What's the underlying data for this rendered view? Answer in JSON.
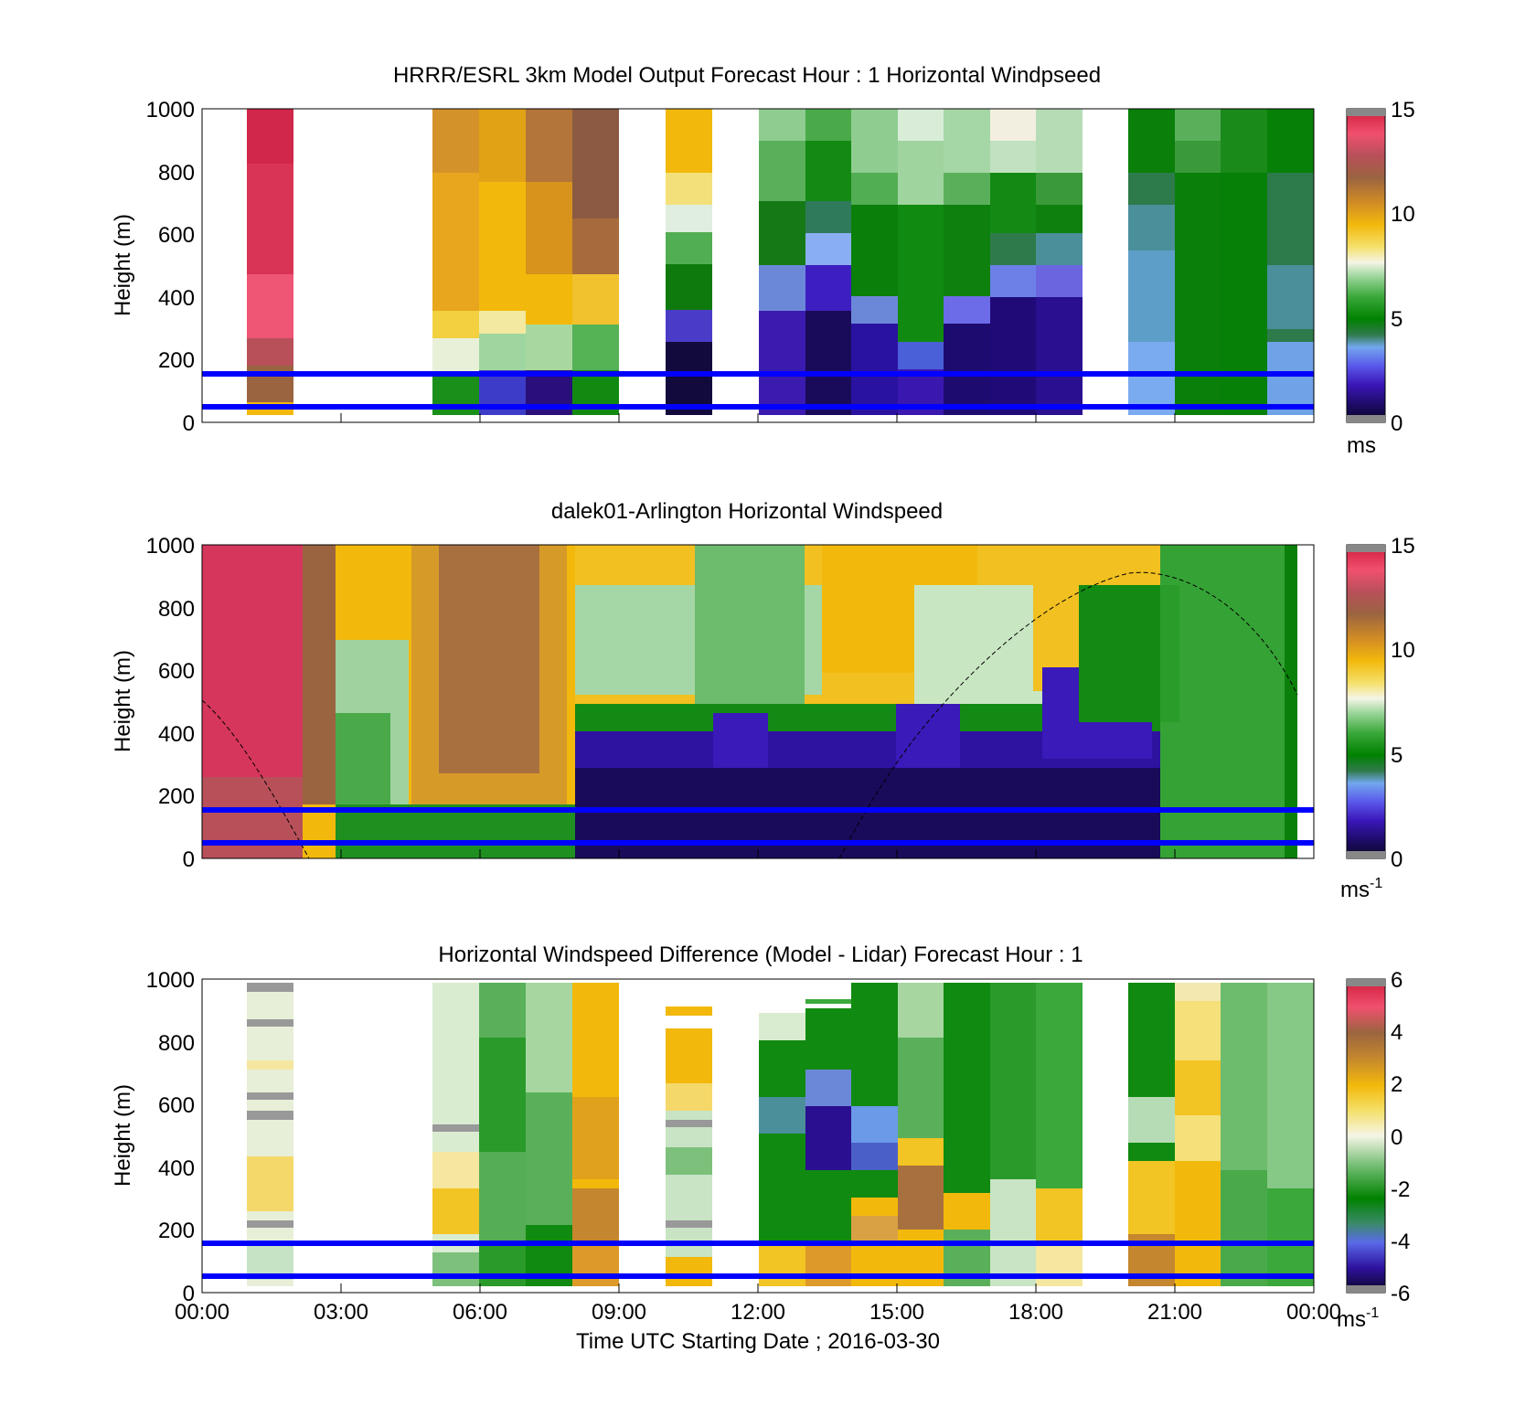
{
  "colors": {
    "reference_lines": "#0000ff",
    "nodata": "#ffffff"
  },
  "x_ticks": [
    "00:00",
    "03:00",
    "06:00",
    "09:00",
    "12:00",
    "15:00",
    "18:00",
    "21:00",
    "00:00"
  ],
  "xlabel": "Time UTC  Starting Date ; 2016-03-30",
  "chart_data": [
    {
      "type": "heatmap",
      "title": "HRRR/ESRL 3km Model Output   Forecast Hour : 1 Horizontal Windpseed",
      "ylabel": "Height (m)",
      "xlim_hours": [
        0,
        24
      ],
      "ylim": [
        0,
        1000
      ],
      "y_ticks": [
        "0",
        "200",
        "400",
        "600",
        "800",
        "1000"
      ],
      "reference_lines_m": [
        50,
        150
      ],
      "colorbar": {
        "min": 0,
        "max": 15,
        "ticks": [
          "0",
          "5",
          "10",
          "15"
        ],
        "unit_main": "ms",
        "unit_sup": ""
      },
      "resolution": "hourly",
      "hours_with_data": [
        1,
        5,
        6,
        7,
        8,
        10,
        12,
        13,
        14,
        15,
        16,
        17,
        18,
        20,
        21,
        22,
        23
      ],
      "approx_profiles_ms_surface_to_top": {
        "01:00": [
          10,
          12,
          14,
          14.5,
          14.5
        ],
        "05:00": [
          2,
          5,
          7,
          9.5,
          10.5
        ],
        "08:00": [
          3,
          6,
          9,
          11,
          12
        ],
        "10:00": [
          1,
          2,
          5,
          8,
          9
        ],
        "13:00": [
          1,
          1.5,
          3,
          5,
          5.5
        ],
        "16:00": [
          1,
          1,
          1.5,
          5,
          6
        ],
        "21:00": [
          5,
          5,
          5,
          5,
          5.5
        ]
      }
    },
    {
      "type": "heatmap",
      "title": "dalek01-Arlington  Horizontal Windspeed",
      "ylabel": "Height (m)",
      "xlim_hours": [
        0,
        24
      ],
      "ylim": [
        0,
        1000
      ],
      "y_ticks": [
        "0",
        "200",
        "400",
        "600",
        "800",
        "1000"
      ],
      "reference_lines_m": [
        50,
        150
      ],
      "colorbar": {
        "min": 0,
        "max": 15,
        "ticks": [
          "0",
          "5",
          "10",
          "15"
        ],
        "unit_main": "ms",
        "unit_sup": "-1"
      },
      "resolution": "continuous lidar profiles",
      "boundary_layer_curve": "dashed black line: descends from about 500 m at 00:00 to 0 m near 02:20, rises from about 13:45 to a peak of about 900 m near 20:00, then falls to about 520 m at 24:00",
      "approx_regimes": [
        {
          "hours": [
            0,
            2.2
          ],
          "speed_ms": "12-15 throughout"
        },
        {
          "hours": [
            2.2,
            8
          ],
          "speed_ms": "5 near surface rising to 9-12 aloft"
        },
        {
          "hours": [
            8,
            19
          ],
          "speed_ms": "1-3 below 300-500 m, 5-9 aloft"
        },
        {
          "hours": [
            19,
            24
          ],
          "speed_ms": "3-6"
        }
      ]
    },
    {
      "type": "heatmap",
      "title": "Horizontal Windspeed Difference (Model - Lidar) Forecast Hour : 1",
      "ylabel": "Height (m)",
      "xlabel": "Time UTC  Starting Date ; 2016-03-30",
      "xlim_hours": [
        0,
        24
      ],
      "ylim": [
        0,
        1000
      ],
      "y_ticks": [
        "0",
        "200",
        "400",
        "600",
        "800",
        "1000"
      ],
      "reference_lines_m": [
        50,
        150
      ],
      "colorbar": {
        "min": -6,
        "max": 6,
        "ticks": [
          "-6",
          "-4",
          "-2",
          "0",
          "2",
          "4",
          "6"
        ],
        "unit_main": "ms",
        "unit_sup": "-1"
      },
      "resolution": "hourly",
      "hours_with_data": [
        1,
        5,
        6,
        7,
        8,
        10,
        12,
        13,
        14,
        15,
        16,
        17,
        18,
        20,
        21,
        22,
        23
      ],
      "approx_difference_ms": {
        "01:00": "-1 to 1",
        "08:00": "1 to 2",
        "13:00": "-5 to -2 aloft",
        "15:00": "2 to 3 near 300 m",
        "21:00": "0 to 1"
      }
    }
  ]
}
